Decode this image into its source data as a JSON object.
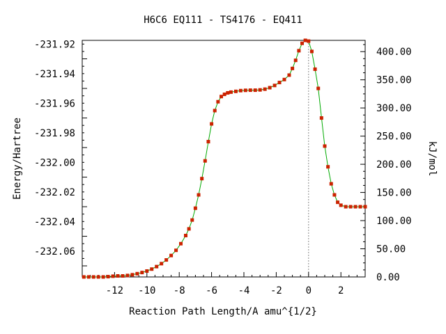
{
  "chart_data": {
    "type": "line",
    "title": "H6C6   EQ111 - TS4176 - EQ411",
    "xlabel": "Reaction Path Length/A amu^{1/2}",
    "ylabel": "Energy/Hartree",
    "y2label": "kJ/mol",
    "xlim": [
      -14.0,
      3.5
    ],
    "ylim": [
      -232.0775,
      -231.9175
    ],
    "y2lim": [
      0,
      420
    ],
    "x_ticks": [
      -12,
      -10,
      -8,
      -6,
      -4,
      -2,
      0,
      2
    ],
    "x_tick_labels": [
      "-12",
      "-10",
      "-8",
      "-6",
      "-4",
      "-2",
      "0",
      "2"
    ],
    "y_ticks": [
      -231.92,
      -231.94,
      -231.96,
      -231.98,
      -232.0,
      -232.02,
      -232.04,
      -232.06
    ],
    "y_tick_labels": [
      "-231.92",
      "-231.94",
      "-231.96",
      "-231.98",
      "-232.00",
      "-232.02",
      "-232.04",
      "-232.06"
    ],
    "y2_ticks": [
      0,
      50,
      100,
      150,
      200,
      250,
      300,
      350,
      400
    ],
    "y2_tick_labels": [
      "0.00",
      "50.00",
      "100.00",
      "150.00",
      "200.00",
      "250.00",
      "300.00",
      "350.00",
      "400.00"
    ],
    "ts_marker_x": 0,
    "colors": {
      "line": "#00aa00",
      "points": "#cc2200",
      "ts_line": "#888888",
      "axes": "#000000"
    },
    "series": [
      {
        "x": [
          -13.9,
          -13.6,
          -13.3,
          -13.0,
          -12.7,
          -12.4,
          -12.1,
          -11.8,
          -11.5,
          -11.2,
          -10.9,
          -10.6,
          -10.3,
          -10.0,
          -9.7,
          -9.4,
          -9.1,
          -8.8,
          -8.5,
          -8.2,
          -7.9,
          -7.6,
          -7.4,
          -7.2,
          -7.0,
          -6.8,
          -6.6,
          -6.4,
          -6.2,
          -6.0,
          -5.8,
          -5.6,
          -5.4,
          -5.2,
          -5.0,
          -4.8,
          -4.5,
          -4.2,
          -3.9,
          -3.6,
          -3.3,
          -3.0,
          -2.7,
          -2.4,
          -2.1,
          -1.8,
          -1.5,
          -1.2,
          -1.0,
          -0.8,
          -0.6,
          -0.4,
          -0.2,
          0.0,
          0.2,
          0.4,
          0.6,
          0.8,
          1.0,
          1.2,
          1.4,
          1.6,
          1.8,
          2.0,
          2.3,
          2.6,
          2.9,
          3.2,
          3.5
        ],
        "y": [
          -232.0775,
          -232.0775,
          -232.0775,
          -232.0775,
          -232.0775,
          -232.0773,
          -232.077,
          -232.0768,
          -232.0768,
          -232.0765,
          -232.076,
          -232.0753,
          -232.0745,
          -232.0735,
          -232.0722,
          -232.0705,
          -232.0685,
          -232.066,
          -232.063,
          -232.0595,
          -232.055,
          -232.0495,
          -232.045,
          -232.039,
          -232.031,
          -232.022,
          -232.011,
          -231.999,
          -231.986,
          -231.974,
          -231.965,
          -231.959,
          -231.9555,
          -231.954,
          -231.953,
          -231.9525,
          -231.952,
          -231.9515,
          -231.9513,
          -231.9512,
          -231.9512,
          -231.951,
          -231.9505,
          -231.9495,
          -231.948,
          -231.946,
          -231.944,
          -231.941,
          -231.9365,
          -231.931,
          -231.9245,
          -231.9195,
          -231.9175,
          -231.918,
          -231.925,
          -231.937,
          -231.95,
          -231.97,
          -231.989,
          -232.003,
          -232.0145,
          -232.022,
          -232.027,
          -232.029,
          -232.03,
          -232.03,
          -232.03,
          -232.03,
          -232.03
        ]
      }
    ]
  }
}
